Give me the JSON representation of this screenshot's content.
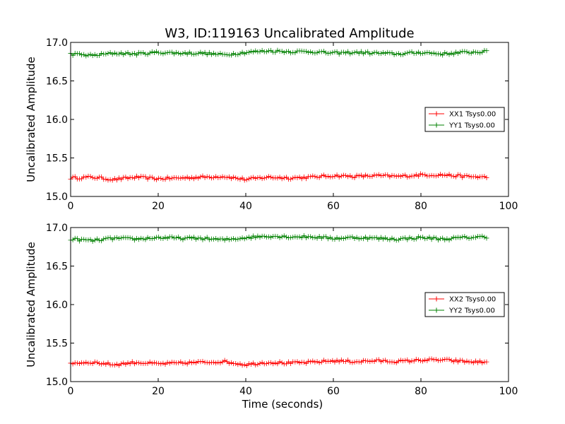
{
  "title": "W3, ID:119163 Uncalibrated Amplitude",
  "colors": {
    "xx": "#ff0000",
    "yy": "#008000"
  },
  "chart_data": [
    {
      "type": "line",
      "ylabel": "Uncalibrated Amplitude",
      "xlabel": "",
      "xlim": [
        0,
        100
      ],
      "ylim": [
        15.0,
        17.0
      ],
      "xticks": [
        "0",
        "20",
        "40",
        "60",
        "80",
        "100"
      ],
      "yticks": [
        "15.0",
        "15.5",
        "16.0",
        "16.5",
        "17.0"
      ],
      "legend_position": "center-right",
      "x_range": [
        0,
        95
      ],
      "points_per_series": 190,
      "series": [
        {
          "name": "XX1 Tsys0.00",
          "color": "#ff0000",
          "marker": "+",
          "anchors_x": [
            0,
            5,
            10,
            15,
            20,
            25,
            30,
            35,
            40,
            45,
            50,
            55,
            60,
            65,
            70,
            75,
            80,
            85,
            90,
            95
          ],
          "anchors_y": [
            15.24,
            15.25,
            15.22,
            15.25,
            15.23,
            15.24,
            15.25,
            15.26,
            15.22,
            15.25,
            15.24,
            15.25,
            15.27,
            15.26,
            15.27,
            15.26,
            15.28,
            15.28,
            15.26,
            15.25
          ]
        },
        {
          "name": "YY1 Tsys0.00",
          "color": "#008000",
          "marker": "+",
          "anchors_x": [
            0,
            5,
            10,
            15,
            20,
            25,
            30,
            35,
            40,
            45,
            50,
            55,
            60,
            65,
            70,
            75,
            80,
            85,
            90,
            95
          ],
          "anchors_y": [
            16.85,
            16.83,
            16.86,
            16.85,
            16.87,
            16.86,
            16.86,
            16.84,
            16.87,
            16.89,
            16.88,
            16.88,
            16.86,
            16.87,
            16.86,
            16.85,
            16.87,
            16.85,
            16.87,
            16.88
          ]
        }
      ]
    },
    {
      "type": "line",
      "ylabel": "Uncalibrated Amplitude",
      "xlabel": "Time (seconds)",
      "xlim": [
        0,
        100
      ],
      "ylim": [
        15.0,
        17.0
      ],
      "xticks": [
        "0",
        "20",
        "40",
        "60",
        "80",
        "100"
      ],
      "yticks": [
        "15.0",
        "15.5",
        "16.0",
        "16.5",
        "17.0"
      ],
      "legend_position": "center-right",
      "x_range": [
        0,
        95
      ],
      "points_per_series": 190,
      "series": [
        {
          "name": "XX2 Tsys0.00",
          "color": "#ff0000",
          "marker": "+",
          "anchors_x": [
            0,
            5,
            10,
            15,
            20,
            25,
            30,
            35,
            40,
            45,
            50,
            55,
            60,
            65,
            70,
            75,
            80,
            85,
            90,
            95
          ],
          "anchors_y": [
            15.24,
            15.25,
            15.22,
            15.25,
            15.23,
            15.24,
            15.25,
            15.26,
            15.22,
            15.25,
            15.24,
            15.25,
            15.27,
            15.26,
            15.27,
            15.26,
            15.28,
            15.28,
            15.26,
            15.25
          ]
        },
        {
          "name": "YY2 Tsys0.00",
          "color": "#008000",
          "marker": "+",
          "anchors_x": [
            0,
            5,
            10,
            15,
            20,
            25,
            30,
            35,
            40,
            45,
            50,
            55,
            60,
            65,
            70,
            75,
            80,
            85,
            90,
            95
          ],
          "anchors_y": [
            16.85,
            16.83,
            16.86,
            16.85,
            16.87,
            16.86,
            16.86,
            16.84,
            16.87,
            16.89,
            16.88,
            16.88,
            16.86,
            16.87,
            16.86,
            16.85,
            16.87,
            16.85,
            16.87,
            16.88
          ]
        }
      ]
    }
  ]
}
